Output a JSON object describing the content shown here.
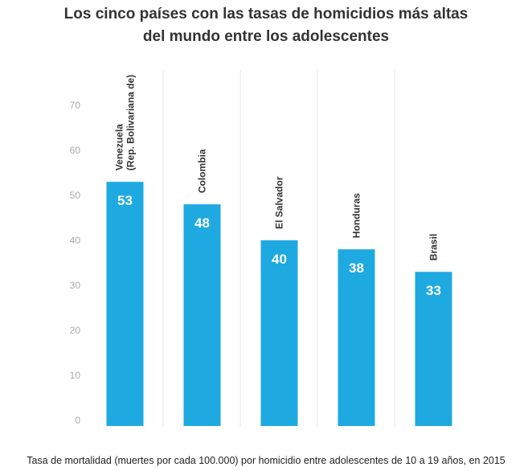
{
  "title_lines": [
    "Los cinco países con las tasas de homicidios más altas",
    "del mundo entre los adolescentes"
  ],
  "caption": "Tasa de mortalidad (muertes por cada 100.000) por homicidio entre adolescentes de 10 a 19 años, en 2015",
  "colors": {
    "bar": "#1ea9e1",
    "bar_label": "#ffffff",
    "tick": "#aaaaaa",
    "grid": "#e6e6e6",
    "category": "#333333"
  },
  "chart_data": {
    "type": "bar",
    "title": "Los cinco países con las tasas de homicidios más altas del mundo entre los adolescentes",
    "categories": [
      [
        "Venezuela",
        "(Rep. Bolivariana de)"
      ],
      [
        "Colombia"
      ],
      [
        "El Salvador"
      ],
      [
        "Honduras"
      ],
      [
        "Brasil"
      ]
    ],
    "values": [
      53,
      48,
      40,
      38,
      33
    ],
    "data_labels": [
      "53",
      "48",
      "40",
      "38",
      "33"
    ],
    "ylim": [
      0,
      70
    ],
    "yticks": [
      0,
      10,
      20,
      30,
      40,
      50,
      60,
      70
    ],
    "xlabel": "",
    "ylabel": "",
    "grid": "vertical separators",
    "legend": "none"
  }
}
